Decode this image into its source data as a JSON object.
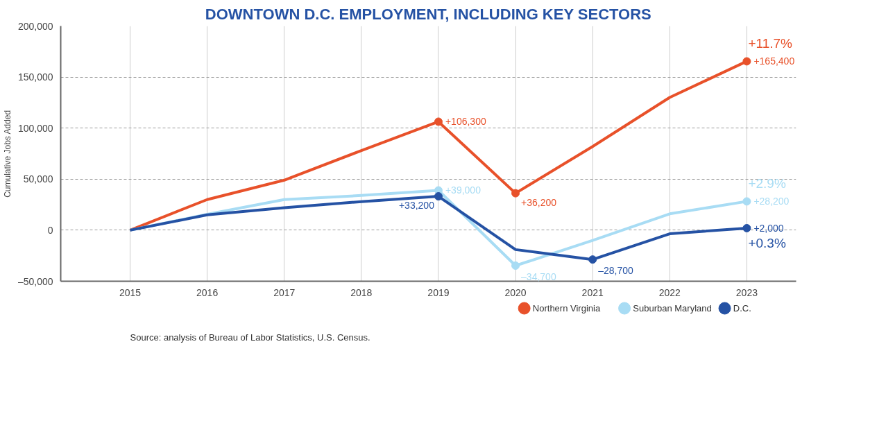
{
  "chart_data": {
    "type": "line",
    "title": "DOWNTOWN D.C. EMPLOYMENT, INCLUDING KEY SECTORS",
    "ylabel": "Cumulative Jobs Added",
    "x": [
      2015,
      2016,
      2017,
      2018,
      2019,
      2020,
      2021,
      2022,
      2023
    ],
    "xlim": [
      2014.1,
      2023.64
    ],
    "xticks": [
      {
        "value": 2015,
        "label": "2015"
      },
      {
        "value": 2016,
        "label": "2016"
      },
      {
        "value": 2017,
        "label": "2017"
      },
      {
        "value": 2018,
        "label": "2018"
      },
      {
        "value": 2019,
        "label": "2019"
      },
      {
        "value": 2020,
        "label": "2020"
      },
      {
        "value": 2021,
        "label": "2021"
      },
      {
        "value": 2022,
        "label": "2022"
      },
      {
        "value": 2023,
        "label": "2023"
      }
    ],
    "ylim": [
      -50000,
      200000
    ],
    "yticks": [
      {
        "value": -50000,
        "label": "–50,000"
      },
      0,
      {
        "value": 50000,
        "label": "50,000"
      },
      {
        "value": 100000,
        "label": "100,000"
      },
      {
        "value": 150000,
        "label": "150,000"
      },
      {
        "value": 200000,
        "label": "200,000"
      }
    ],
    "series": [
      {
        "name": "Northern Virginia",
        "color": "#e8512a",
        "values": [
          0,
          30000,
          49000,
          78000,
          106300,
          36200,
          82000,
          130000,
          165400
        ],
        "value_labels": [
          null,
          null,
          null,
          null,
          "+106,300",
          "+36,200",
          null,
          null,
          "+165,400"
        ]
      },
      {
        "name": "Suburban Maryland",
        "color": "#a8dcf4",
        "values": [
          0,
          15500,
          30000,
          34000,
          39000,
          -34700,
          -10000,
          16000,
          28200
        ],
        "value_labels": [
          null,
          null,
          null,
          null,
          "+39,000",
          "–34,700",
          null,
          null,
          "+28,200"
        ]
      },
      {
        "name": "D.C.",
        "color": "#2552a4",
        "values": [
          0,
          15000,
          22000,
          28000,
          33200,
          -19000,
          -28700,
          -3500,
          2000
        ],
        "value_labels": [
          null,
          null,
          null,
          null,
          "+33,200",
          null,
          "–28,700",
          null,
          "+2,000"
        ]
      }
    ],
    "annotations": [
      "+11.7%",
      "+2.9%",
      "+0.3%",
      "Source: analysis of Bureau of Labor Statistics, U.S. Census."
    ],
    "grid": true,
    "legend": "bottom right",
    "line_style": "solid"
  }
}
